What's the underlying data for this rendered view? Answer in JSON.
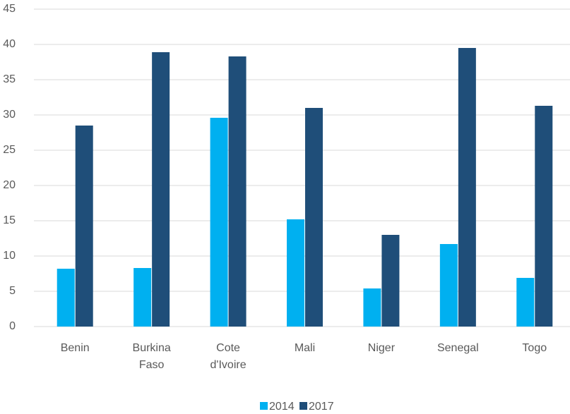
{
  "chart_data": {
    "type": "bar",
    "categories": [
      "Benin",
      "Burkina Faso",
      "Cote d'Ivoire",
      "Mali",
      "Niger",
      "Senegal",
      "Togo"
    ],
    "series": [
      {
        "name": "2014",
        "color": "#00b0f0",
        "values": [
          8.2,
          8.3,
          29.6,
          15.2,
          5.4,
          11.7,
          6.9
        ]
      },
      {
        "name": "2017",
        "color": "#1f4e79",
        "values": [
          28.5,
          38.9,
          38.3,
          31.0,
          13.0,
          39.5,
          31.3
        ]
      }
    ],
    "ylim": [
      0,
      45
    ],
    "yticks": [
      0,
      5,
      10,
      15,
      20,
      25,
      30,
      35,
      40,
      45
    ],
    "grid": true,
    "legend": "bottom"
  }
}
